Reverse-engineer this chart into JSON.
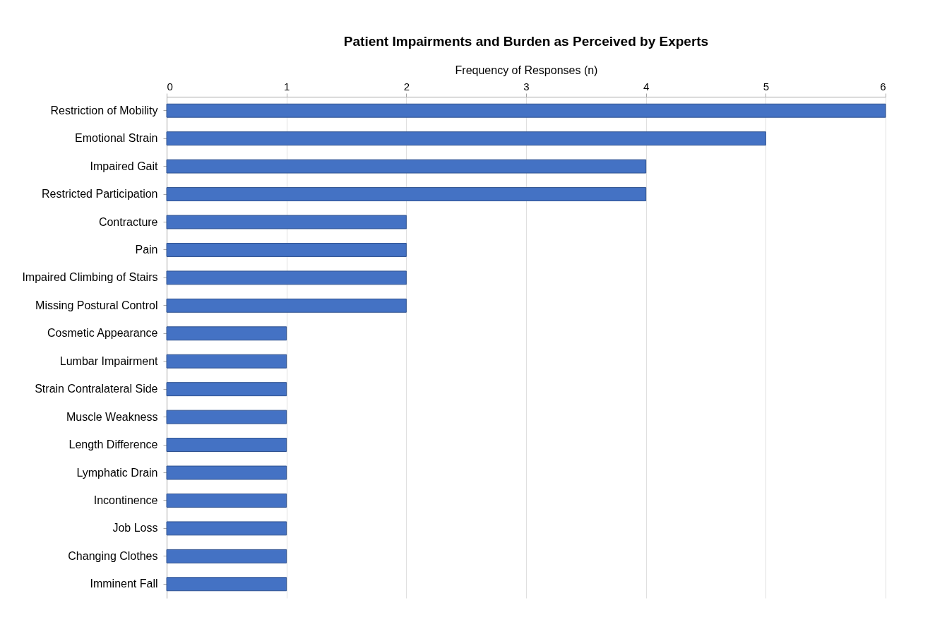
{
  "chart_data": {
    "type": "bar",
    "orientation": "horizontal",
    "title": "Patient Impairments and Burden as Perceived by Experts",
    "xlabel": "Frequency of Responses (n)",
    "categories": [
      "Restriction of Mobility",
      "Emotional Strain",
      "Impaired Gait",
      "Restricted Participation",
      "Contracture",
      "Pain",
      "Impaired Climbing of Stairs",
      "Missing Postural Control",
      "Cosmetic Appearance",
      "Lumbar Impairment",
      "Strain Contralateral Side",
      "Muscle Weakness",
      "Length Difference",
      "Lymphatic Drain",
      "Incontinence",
      "Job Loss",
      "Changing Clothes",
      "Imminent Fall"
    ],
    "values": [
      6,
      5,
      4,
      4,
      2,
      2,
      2,
      2,
      1,
      1,
      1,
      1,
      1,
      1,
      1,
      1,
      1,
      1
    ],
    "color": "#4472c4",
    "xlim": [
      0,
      6
    ],
    "xticks": [
      0,
      1,
      2,
      3,
      4,
      5,
      6
    ],
    "grid": "x"
  }
}
